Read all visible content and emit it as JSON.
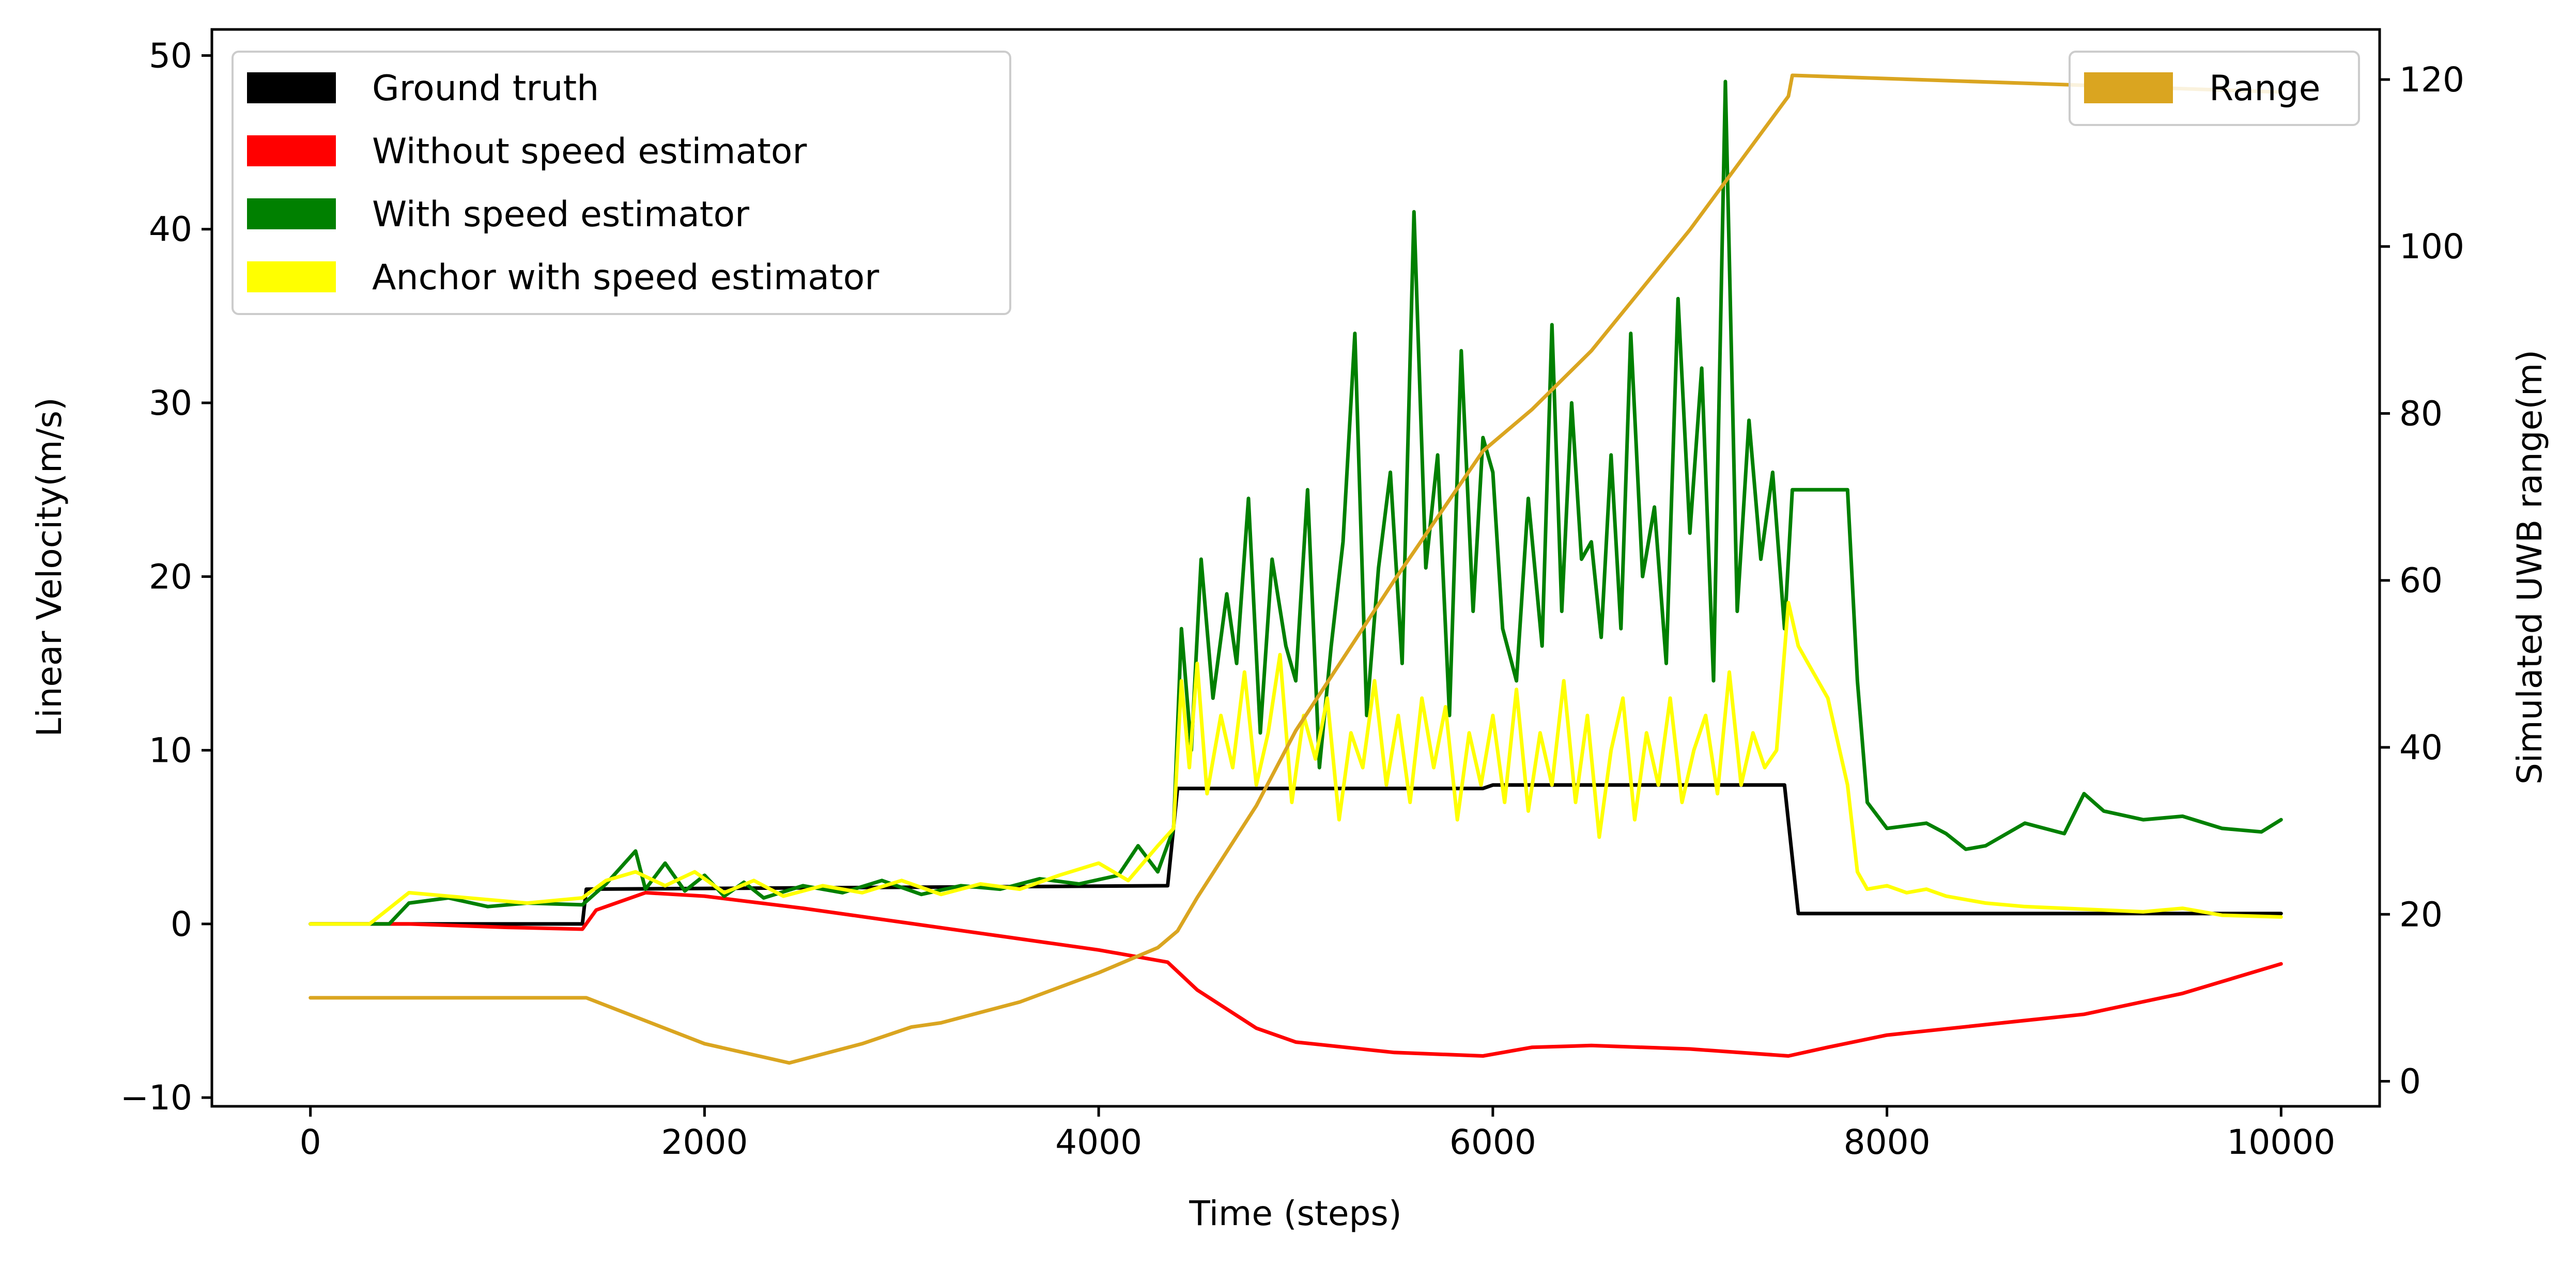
{
  "chart_data": {
    "type": "line",
    "xlabel": "Time (steps)",
    "ylabel": "Linear Velocity(m/s)",
    "y2label": "Simulated UWB range(m)",
    "xlim": [
      -500,
      10500
    ],
    "ylim": [
      -10.5,
      51.5
    ],
    "y2lim": [
      -3,
      126
    ],
    "x_ticks": [
      0,
      2000,
      4000,
      6000,
      8000,
      10000
    ],
    "y_ticks": [
      -10,
      0,
      10,
      20,
      30,
      40,
      50
    ],
    "y2_ticks": [
      0,
      20,
      40,
      60,
      80,
      100,
      120
    ],
    "x_tick_labels": [
      "0",
      "2000",
      "4000",
      "6000",
      "8000",
      "10000"
    ],
    "y_tick_labels": [
      "−10",
      "0",
      "10",
      "20",
      "30",
      "40",
      "50"
    ],
    "y2_tick_labels": [
      "0",
      "20",
      "40",
      "60",
      "80",
      "100",
      "120"
    ],
    "grid": false,
    "legend_left_position": "top-left",
    "legend_right_position": "top-right",
    "series": [
      {
        "name": "Ground truth",
        "axis": "left",
        "color": "#000000",
        "x": [
          0,
          1380,
          1400,
          4350,
          4400,
          5950,
          6000,
          7480,
          7550,
          10000
        ],
        "y": [
          0,
          0,
          2.0,
          2.2,
          7.8,
          7.8,
          8.0,
          8.0,
          0.6,
          0.6
        ]
      },
      {
        "name": "Without speed estimator",
        "axis": "left",
        "color": "#ff0000",
        "x": [
          0,
          500,
          1000,
          1380,
          1450,
          1700,
          2000,
          2500,
          3000,
          3500,
          4000,
          4350,
          4500,
          4800,
          5000,
          5500,
          5950,
          6200,
          6500,
          7000,
          7500,
          7700,
          8000,
          8500,
          9000,
          9500,
          10000
        ],
        "y": [
          0,
          0,
          -0.2,
          -0.3,
          0.8,
          1.8,
          1.6,
          0.9,
          0.1,
          -0.7,
          -1.5,
          -2.2,
          -3.8,
          -6.0,
          -6.8,
          -7.4,
          -7.6,
          -7.1,
          -7.0,
          -7.2,
          -7.6,
          -7.1,
          -6.4,
          -5.8,
          -5.2,
          -4.0,
          -2.3
        ]
      },
      {
        "name": "With speed estimator",
        "axis": "left",
        "color": "#008000",
        "x": [
          0,
          400,
          500,
          700,
          900,
          1100,
          1380,
          1500,
          1650,
          1700,
          1800,
          1900,
          2000,
          2100,
          2200,
          2300,
          2500,
          2700,
          2900,
          3100,
          3300,
          3500,
          3700,
          3900,
          4100,
          4200,
          4300,
          4380,
          4420,
          4470,
          4520,
          4580,
          4650,
          4700,
          4760,
          4820,
          4880,
          4950,
          5000,
          5060,
          5120,
          5180,
          5240,
          5300,
          5360,
          5420,
          5480,
          5540,
          5600,
          5660,
          5720,
          5780,
          5840,
          5900,
          5950,
          6000,
          6050,
          6120,
          6180,
          6250,
          6300,
          6350,
          6400,
          6450,
          6500,
          6550,
          6600,
          6650,
          6700,
          6760,
          6820,
          6880,
          6940,
          7000,
          7060,
          7120,
          7180,
          7240,
          7300,
          7360,
          7420,
          7480,
          7520,
          7600,
          7800,
          7850,
          7900,
          8000,
          8200,
          8300,
          8400,
          8500,
          8700,
          8900,
          9000,
          9100,
          9300,
          9500,
          9700,
          9900,
          10000
        ],
        "y": [
          0,
          0,
          1.2,
          1.5,
          1.0,
          1.2,
          1.1,
          2.3,
          4.2,
          2.0,
          3.5,
          1.9,
          2.8,
          1.6,
          2.4,
          1.5,
          2.2,
          1.8,
          2.5,
          1.7,
          2.2,
          2.0,
          2.6,
          2.3,
          2.8,
          4.5,
          3.0,
          5.5,
          17.0,
          10.0,
          21.0,
          13.0,
          19.0,
          15.0,
          24.5,
          11.0,
          21.0,
          16.0,
          14.0,
          25.0,
          9.0,
          16.0,
          22.0,
          34.0,
          12.0,
          20.5,
          26.0,
          15.0,
          41.0,
          20.5,
          27.0,
          12.0,
          33.0,
          18.0,
          28.0,
          26.0,
          17.0,
          14.0,
          24.5,
          16.0,
          34.5,
          18.0,
          30.0,
          21.0,
          22.0,
          16.5,
          27.0,
          17.0,
          34.0,
          20.0,
          24.0,
          15.0,
          36.0,
          22.5,
          32.0,
          14.0,
          48.5,
          18.0,
          29.0,
          21.0,
          26.0,
          17.0,
          25.0,
          25.0,
          25.0,
          14.0,
          7.0,
          5.5,
          5.8,
          5.2,
          4.3,
          4.5,
          5.8,
          5.2,
          7.5,
          6.5,
          6.0,
          6.2,
          5.5,
          5.3,
          6.0
        ]
      },
      {
        "name": "Anchor with speed estimator",
        "axis": "left",
        "color": "#ffff00",
        "x": [
          0,
          300,
          500,
          700,
          900,
          1100,
          1380,
          1500,
          1650,
          1800,
          1950,
          2100,
          2250,
          2400,
          2600,
          2800,
          3000,
          3200,
          3400,
          3600,
          3800,
          4000,
          4150,
          4300,
          4380,
          4420,
          4460,
          4500,
          4550,
          4620,
          4680,
          4740,
          4800,
          4860,
          4920,
          4980,
          5040,
          5100,
          5160,
          5220,
          5280,
          5340,
          5400,
          5460,
          5520,
          5580,
          5640,
          5700,
          5760,
          5820,
          5880,
          5940,
          6000,
          6060,
          6120,
          6180,
          6240,
          6300,
          6360,
          6420,
          6480,
          6540,
          6600,
          6660,
          6720,
          6780,
          6840,
          6900,
          6960,
          7020,
          7080,
          7140,
          7200,
          7260,
          7320,
          7380,
          7440,
          7500,
          7550,
          7600,
          7700,
          7800,
          7850,
          7900,
          8000,
          8100,
          8200,
          8300,
          8500,
          8700,
          8900,
          9100,
          9300,
          9500,
          9700,
          10000
        ],
        "y": [
          0,
          0,
          1.8,
          1.6,
          1.4,
          1.2,
          1.5,
          2.5,
          3.0,
          2.2,
          3.0,
          1.8,
          2.5,
          1.6,
          2.2,
          1.8,
          2.5,
          1.7,
          2.3,
          2.0,
          2.8,
          3.5,
          2.5,
          4.5,
          5.5,
          14.0,
          9.0,
          15.0,
          7.5,
          12.0,
          9.0,
          14.5,
          8.0,
          11.0,
          15.5,
          7.0,
          12.0,
          9.5,
          13.0,
          6.0,
          11.0,
          9.0,
          14.0,
          8.0,
          12.0,
          7.0,
          13.0,
          9.0,
          12.5,
          6.0,
          11.0,
          8.0,
          12.0,
          7.0,
          13.5,
          6.5,
          11.0,
          8.0,
          14.0,
          7.0,
          12.0,
          5.0,
          10.0,
          13.0,
          6.0,
          11.0,
          8.0,
          13.0,
          7.0,
          10.0,
          12.0,
          7.5,
          14.5,
          8.0,
          11.0,
          9.0,
          10.0,
          18.5,
          16.0,
          15.0,
          13.0,
          8.0,
          3.0,
          2.0,
          2.2,
          1.8,
          2.0,
          1.6,
          1.2,
          1.0,
          0.9,
          0.8,
          0.7,
          0.9,
          0.5,
          0.4
        ]
      },
      {
        "name": "Range",
        "axis": "right",
        "color": "#daa520",
        "x": [
          0,
          1400,
          2000,
          2430,
          2800,
          3050,
          3200,
          3600,
          4000,
          4300,
          4400,
          4500,
          4800,
          5000,
          5500,
          5950,
          6200,
          6500,
          7000,
          7500,
          7520,
          10000
        ],
        "y": [
          10,
          10,
          4.5,
          2.2,
          4.5,
          6.5,
          7.0,
          9.5,
          13.0,
          16.0,
          18.0,
          22.0,
          33.0,
          42.0,
          60.0,
          75.5,
          80.5,
          87.5,
          102.0,
          118.0,
          120.5,
          118.5
        ]
      }
    ]
  }
}
